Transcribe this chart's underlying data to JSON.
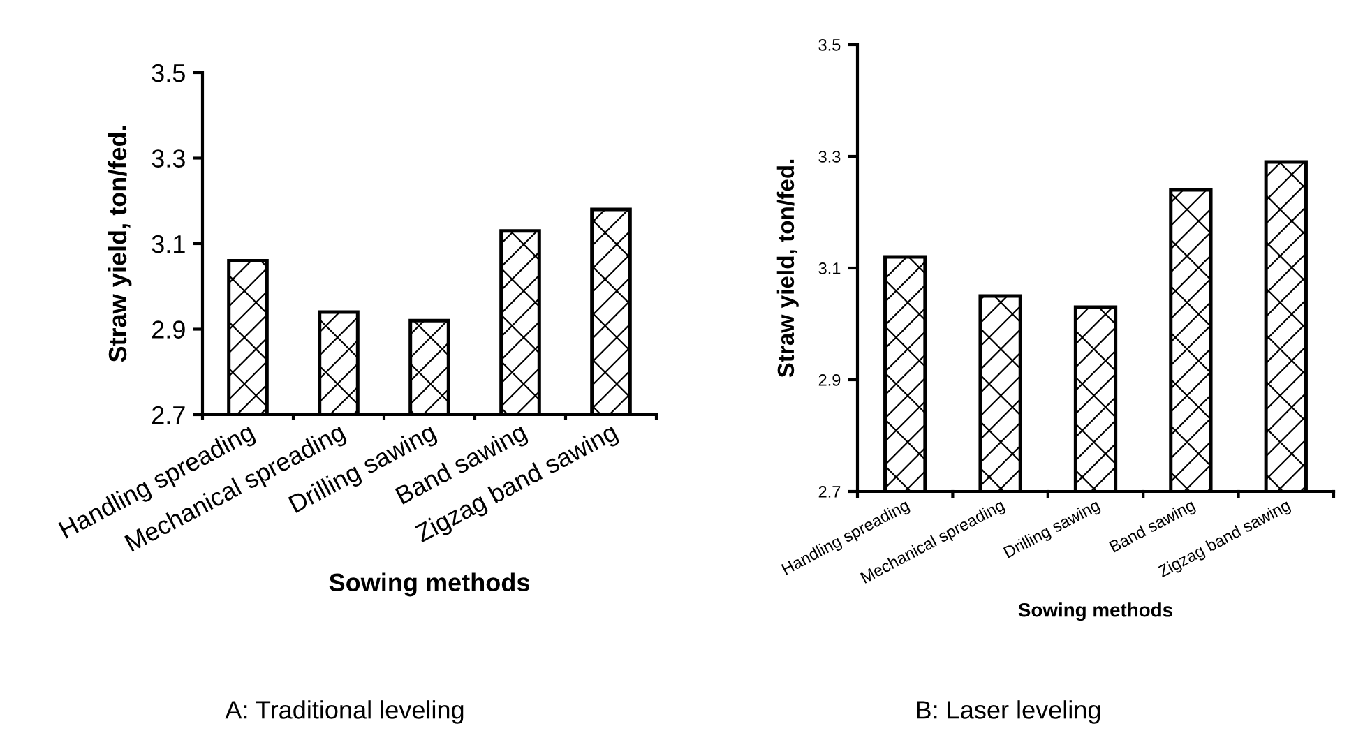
{
  "chart_data": [
    {
      "type": "bar",
      "xlabel": "Sowing methods",
      "ylabel": "Straw yield, ton/fed.",
      "categories": [
        "Handling spreading",
        "Mechanical spreading",
        "Drilling sawing",
        "Band sawing",
        "Zigzag band sawing"
      ],
      "values": [
        3.06,
        2.94,
        2.92,
        3.13,
        3.18
      ],
      "color": "#000000",
      "ylim": [
        2.7,
        3.5
      ],
      "yticks": [
        2.7,
        2.9,
        3.1,
        3.3,
        3.5
      ],
      "grid": false,
      "legend": false,
      "annotations": [
        "A: Traditional leveling"
      ]
    },
    {
      "type": "bar",
      "xlabel": "Sowing methods",
      "ylabel": "Straw yield, ton/fed.",
      "categories": [
        "Handling spreading",
        "Mechanical spreading",
        "Drilling sawing",
        "Band sawing",
        "Zigzag band sawing"
      ],
      "values": [
        3.12,
        3.05,
        3.03,
        3.24,
        3.29
      ],
      "color": "#000000",
      "ylim": [
        2.7,
        3.5
      ],
      "yticks": [
        2.7,
        2.9,
        3.1,
        3.3,
        3.5
      ],
      "grid": false,
      "legend": false,
      "annotations": [
        "B: Laser leveling"
      ]
    }
  ]
}
